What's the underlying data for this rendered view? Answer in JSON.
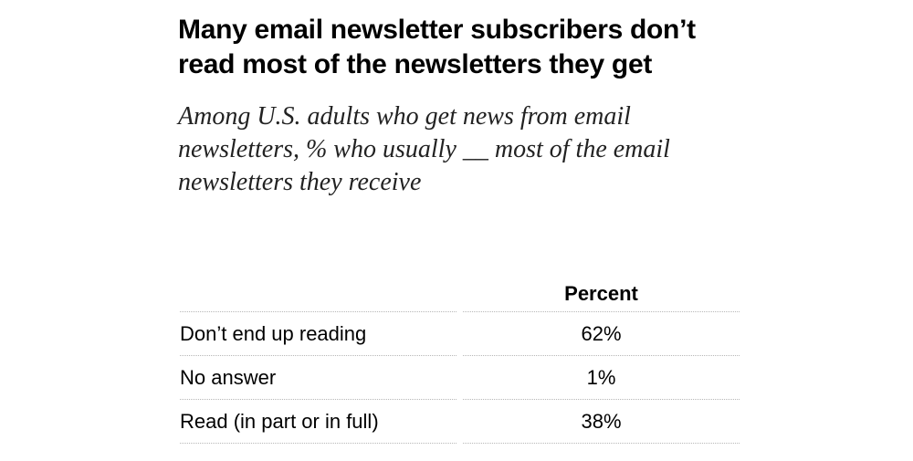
{
  "chart_data": {
    "type": "table",
    "title": "Many email newsletter subscribers don’t read most of the newsletters they get",
    "subtitle": "Among U.S. adults who get news from email newsletters, % who usually __ most of the email newsletters they receive",
    "column_header": "Percent",
    "rows": [
      {
        "label": "Don’t end up reading",
        "value": "62%"
      },
      {
        "label": "No answer",
        "value": "1%"
      },
      {
        "label": "Read (in part or in full)",
        "value": "38%"
      }
    ],
    "values": [
      62,
      1,
      38
    ]
  }
}
